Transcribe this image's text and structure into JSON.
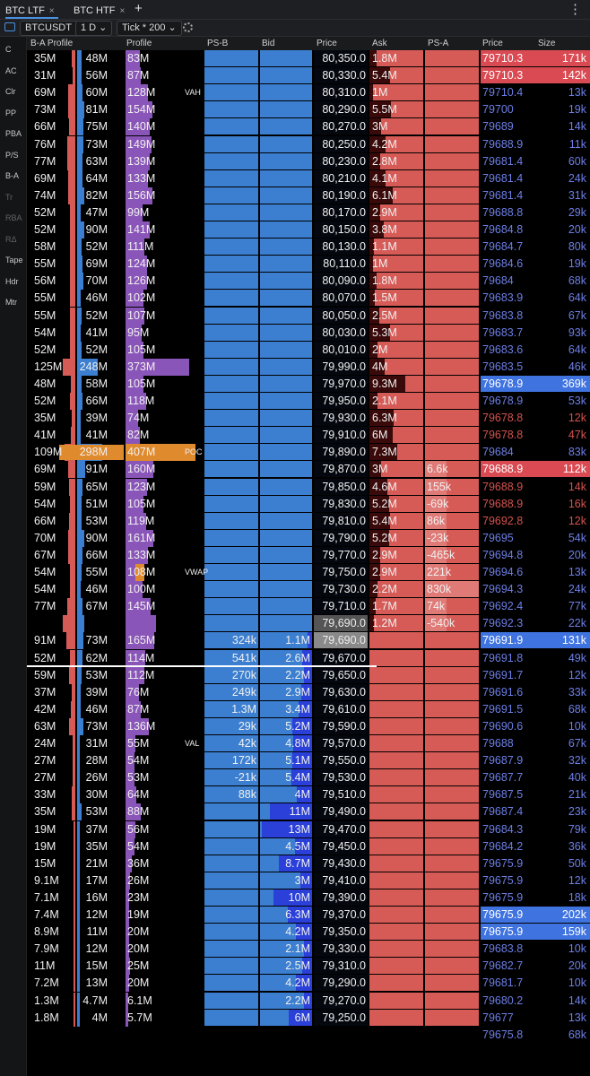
{
  "tabs": [
    {
      "label": "BTC LTF",
      "close": "×"
    },
    {
      "label": "BTC HTF",
      "close": "×"
    }
  ],
  "tab_add": "+",
  "tab_menu": "⋮",
  "toolbar": {
    "symbol": "BTCUSDT ⋮",
    "timeframe": "1 D ⌄",
    "tick": "Tick * 200 ⌄"
  },
  "sidebar": [
    "C",
    "AC",
    "Clr",
    "PP",
    "PBA",
    "P/S",
    "B-A",
    "Tr",
    "RBA",
    "RΔ",
    "Tape",
    "Hdr",
    "Mtr"
  ],
  "headers": {
    "ba_profile": "B-A Profile",
    "profile": "Profile",
    "psb": "PS-B",
    "bid": "Bid",
    "price": "Price",
    "ask": "Ask",
    "psa": "PS-A",
    "t_price": "Price",
    "t_size": "Size"
  },
  "colors": {
    "bid": "#3c7fd0",
    "ask": "#d65b57",
    "profile": "#8a55b8",
    "poc": "#e08a2e",
    "ts_buy": "#3f73e0",
    "ts_sell": "#d94a52"
  },
  "rows": [
    {
      "b": "35M",
      "a": "48M",
      "p": "83M",
      "ask": "1.8M",
      "price": "80,350.0",
      "tp": "79710.3",
      "ts": "171k",
      "tside": "sell"
    },
    {
      "b": "31M",
      "a": "56M",
      "p": "87M",
      "ask": "5.4M",
      "price": "80,330.0",
      "tp": "79710.3",
      "ts": "142k",
      "tside": "sell"
    },
    {
      "b": "69M",
      "a": "60M",
      "p": "128M",
      "tag": "VAH",
      "ask": "1M",
      "price": "80,310.0",
      "tp": "79710.4",
      "ts": "13k"
    },
    {
      "b": "73M",
      "a": "81M",
      "p": "154M",
      "ask": "5.5M",
      "price": "80,290.0",
      "tp": "79700",
      "ts": "19k"
    },
    {
      "b": "66M",
      "a": "75M",
      "p": "140M",
      "ask": "3M",
      "price": "80,270.0",
      "tp": "79689",
      "ts": "14k"
    },
    {
      "b": "76M",
      "a": "73M",
      "p": "149M",
      "ask": "4.2M",
      "price": "80,250.0",
      "tp": "79688.9",
      "ts": "11k"
    },
    {
      "b": "77M",
      "a": "63M",
      "p": "139M",
      "ask": "2.8M",
      "price": "80,230.0",
      "tp": "79681.4",
      "ts": "60k"
    },
    {
      "b": "69M",
      "a": "64M",
      "p": "133M",
      "ask": "4.1M",
      "price": "80,210.0",
      "tp": "79681.4",
      "ts": "24k"
    },
    {
      "b": "74M",
      "a": "82M",
      "p": "156M",
      "ask": "6.1M",
      "price": "80,190.0",
      "tp": "79681.4",
      "ts": "31k"
    },
    {
      "b": "52M",
      "a": "47M",
      "p": "99M",
      "ask": "2.9M",
      "price": "80,170.0",
      "tp": "79688.8",
      "ts": "29k"
    },
    {
      "b": "52M",
      "a": "90M",
      "p": "141M",
      "ask": "3.8M",
      "price": "80,150.0",
      "tp": "79684.8",
      "ts": "20k"
    },
    {
      "b": "58M",
      "a": "52M",
      "p": "111M",
      "ask": "1.1M",
      "price": "80,130.0",
      "tp": "79684.7",
      "ts": "80k"
    },
    {
      "b": "55M",
      "a": "69M",
      "p": "124M",
      "ask": "1M",
      "price": "80,110.0",
      "tp": "79684.6",
      "ts": "19k"
    },
    {
      "b": "56M",
      "a": "70M",
      "p": "126M",
      "ask": "1.8M",
      "price": "80,090.0",
      "tp": "79684",
      "ts": "68k"
    },
    {
      "b": "55M",
      "a": "46M",
      "p": "102M",
      "ask": "1.5M",
      "price": "80,070.0",
      "tp": "79683.9",
      "ts": "64k"
    },
    {
      "b": "55M",
      "a": "52M",
      "p": "107M",
      "ask": "2.5M",
      "price": "80,050.0",
      "tp": "79683.8",
      "ts": "67k"
    },
    {
      "b": "54M",
      "a": "41M",
      "p": "95M",
      "ask": "5.3M",
      "price": "80,030.0",
      "tp": "79683.7",
      "ts": "93k"
    },
    {
      "b": "52M",
      "a": "52M",
      "p": "105M",
      "ask": "2M",
      "price": "80,010.0",
      "tp": "79683.6",
      "ts": "64k"
    },
    {
      "b": "125M",
      "a": "248M",
      "p": "373M",
      "ask": "4M",
      "price": "79,990.0",
      "tp": "79683.5",
      "ts": "46k"
    },
    {
      "b": "48M",
      "a": "58M",
      "p": "105M",
      "ask": "9.3M",
      "price": "79,970.0",
      "tp": "79678.9",
      "ts": "369k",
      "tside": "buy"
    },
    {
      "b": "52M",
      "a": "66M",
      "p": "118M",
      "ask": "2.1M",
      "price": "79,950.0",
      "tp": "79678.9",
      "ts": "53k"
    },
    {
      "b": "35M",
      "a": "39M",
      "p": "74M",
      "ask": "6.3M",
      "price": "79,930.0",
      "tp": "79678.8",
      "ts": "12k",
      "tred": true
    },
    {
      "b": "41M",
      "a": "41M",
      "p": "82M",
      "ask": "6M",
      "price": "79,910.0",
      "tp": "79678.8",
      "ts": "47k",
      "tred": true
    },
    {
      "b": "109M",
      "a": "298M",
      "p": "407M",
      "tag": "POC",
      "poc": true,
      "ask": "7.3M",
      "price": "79,890.0",
      "tp": "79684",
      "ts": "83k"
    },
    {
      "b": "69M",
      "a": "91M",
      "p": "160M",
      "ask": "3M",
      "psa": "6.6k",
      "price": "79,870.0",
      "tp": "79688.9",
      "ts": "112k",
      "tside": "sell"
    },
    {
      "b": "59M",
      "a": "65M",
      "p": "123M",
      "ask": "4.6M",
      "psa": "155k",
      "price": "79,850.0",
      "tp": "79688.9",
      "ts": "14k",
      "tred": true
    },
    {
      "b": "54M",
      "a": "51M",
      "p": "105M",
      "ask": "5.2M",
      "psa": "-69k",
      "price": "79,830.0",
      "tp": "79688.9",
      "ts": "16k",
      "tred": true
    },
    {
      "b": "66M",
      "a": "53M",
      "p": "119M",
      "ask": "5.4M",
      "psa": "86k",
      "price": "79,810.0",
      "tp": "79692.8",
      "ts": "12k",
      "tred": true
    },
    {
      "b": "70M",
      "a": "90M",
      "p": "161M",
      "ask": "5.2M",
      "psa": "-23k",
      "price": "79,790.0",
      "tp": "79695",
      "ts": "54k"
    },
    {
      "b": "67M",
      "a": "66M",
      "p": "133M",
      "ask": "2.9M",
      "psa": "-465k",
      "price": "79,770.0",
      "tp": "79694.8",
      "ts": "20k"
    },
    {
      "b": "54M",
      "a": "55M",
      "p": "108M",
      "tag": "VWAP",
      "vwap": true,
      "ask": "2.9M",
      "psa": "221k",
      "price": "79,750.0",
      "tp": "79694.6",
      "ts": "13k"
    },
    {
      "b": "54M",
      "a": "46M",
      "p": "100M",
      "ask": "2.2M",
      "psa": "830k",
      "price": "79,730.0",
      "tp": "79694.3",
      "ts": "24k"
    },
    {
      "b": "77M",
      "a": "67M",
      "p": "145M",
      "ask": "1.7M",
      "psa": "74k",
      "price": "79,710.0",
      "tp": "79692.4",
      "ts": "77k"
    },
    {
      "b": "",
      "a": "",
      "p": "",
      "ask": "1.2M",
      "psa": "-540k",
      "price": "79,690.0",
      "cur": true,
      "tp": "79692.3",
      "ts": "22k"
    },
    {
      "b": "91M",
      "a": "73M",
      "p": "165M",
      "psb": "324k",
      "bid": "1.1M",
      "price": "79,690.0",
      "curp": true,
      "tp": "79691.9",
      "ts": "131k",
      "tside": "buy"
    },
    {
      "b": "52M",
      "a": "62M",
      "p": "114M",
      "psb": "541k",
      "bid": "2.6M",
      "price": "79,670.0",
      "tp": "79691.8",
      "ts": "49k"
    },
    {
      "b": "59M",
      "a": "53M",
      "p": "112M",
      "psb": "270k",
      "bid": "2.2M",
      "price": "79,650.0",
      "tp": "79691.7",
      "ts": "12k"
    },
    {
      "b": "37M",
      "a": "39M",
      "p": "76M",
      "psb": "249k",
      "bid": "2.9M",
      "price": "79,630.0",
      "tp": "79691.6",
      "ts": "33k"
    },
    {
      "b": "42M",
      "a": "46M",
      "p": "87M",
      "psb": "1.3M",
      "bid": "3.4M",
      "price": "79,610.0",
      "tp": "79691.5",
      "ts": "68k"
    },
    {
      "b": "63M",
      "a": "73M",
      "p": "136M",
      "psb": "29k",
      "bid": "5.2M",
      "price": "79,590.0",
      "tp": "79690.6",
      "ts": "10k"
    },
    {
      "b": "24M",
      "a": "31M",
      "p": "55M",
      "tag": "VAL",
      "psb": "42k",
      "bid": "4.8M",
      "price": "79,570.0",
      "tp": "79688",
      "ts": "67k"
    },
    {
      "b": "27M",
      "a": "28M",
      "p": "54M",
      "psb": "172k",
      "bid": "5.1M",
      "price": "79,550.0",
      "tp": "79687.9",
      "ts": "32k"
    },
    {
      "b": "27M",
      "a": "26M",
      "p": "53M",
      "psb": "-21k",
      "bid": "5.4M",
      "price": "79,530.0",
      "tp": "79687.7",
      "ts": "40k"
    },
    {
      "b": "33M",
      "a": "30M",
      "p": "64M",
      "psb": "88k",
      "bid": "4M",
      "price": "79,510.0",
      "tp": "79687.5",
      "ts": "21k"
    },
    {
      "b": "35M",
      "a": "53M",
      "p": "88M",
      "bid": "11M",
      "price": "79,490.0",
      "tp": "79687.4",
      "ts": "23k"
    },
    {
      "b": "19M",
      "a": "37M",
      "p": "56M",
      "bid": "13M",
      "price": "79,470.0",
      "tp": "79684.3",
      "ts": "79k"
    },
    {
      "b": "19M",
      "a": "35M",
      "p": "54M",
      "bid": "4.5M",
      "price": "79,450.0",
      "tp": "79684.2",
      "ts": "36k"
    },
    {
      "b": "15M",
      "a": "21M",
      "p": "36M",
      "bid": "8.7M",
      "price": "79,430.0",
      "tp": "79675.9",
      "ts": "50k"
    },
    {
      "b": "9.1M",
      "a": "17M",
      "p": "26M",
      "bid": "3M",
      "price": "79,410.0",
      "tp": "79675.9",
      "ts": "12k"
    },
    {
      "b": "7.1M",
      "a": "16M",
      "p": "23M",
      "bid": "10M",
      "price": "79,390.0",
      "tp": "79675.9",
      "ts": "18k"
    },
    {
      "b": "7.4M",
      "a": "12M",
      "p": "19M",
      "bid": "6.3M",
      "price": "79,370.0",
      "tp": "79675.9",
      "ts": "202k",
      "tside": "buy"
    },
    {
      "b": "8.9M",
      "a": "11M",
      "p": "20M",
      "bid": "4.2M",
      "price": "79,350.0",
      "tp": "79675.9",
      "ts": "159k",
      "tside": "buy"
    },
    {
      "b": "7.9M",
      "a": "12M",
      "p": "20M",
      "bid": "2.1M",
      "price": "79,330.0",
      "tp": "79683.8",
      "ts": "10k"
    },
    {
      "b": "11M",
      "a": "15M",
      "p": "25M",
      "bid": "2.5M",
      "price": "79,310.0",
      "tp": "79682.7",
      "ts": "20k"
    },
    {
      "b": "7.2M",
      "a": "13M",
      "p": "20M",
      "bid": "4.2M",
      "price": "79,290.0",
      "tp": "79681.7",
      "ts": "10k"
    },
    {
      "b": "1.3M",
      "a": "4.7M",
      "p": "6.1M",
      "bid": "2.2M",
      "price": "79,270.0",
      "tp": "79680.2",
      "ts": "14k"
    },
    {
      "b": "1.8M",
      "a": "4M",
      "p": "5.7M",
      "bid": "6M",
      "price": "79,250.0",
      "tp": "79677",
      "ts": "13k"
    },
    {
      "b": "",
      "a": "",
      "p": "",
      "price": "",
      "tp": "79675.8",
      "ts": "68k"
    }
  ]
}
